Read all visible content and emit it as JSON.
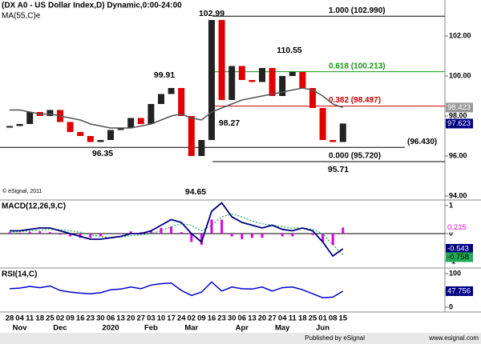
{
  "chart_data": [
    {
      "type": "candlestick",
      "title": "(DX A0 - US Dollar Index,D) Dynamic,0:00-24:00",
      "subtitle": "MA(55,C)e",
      "credit": "© eSignal, 2011",
      "categories": [
        "28",
        "04",
        "11",
        "18",
        "25",
        "02",
        "09",
        "16",
        "23",
        "30",
        "06",
        "13",
        "20",
        "27",
        "03",
        "10",
        "17",
        "24",
        "02",
        "09",
        "16",
        "23",
        "30",
        "06",
        "13",
        "20",
        "27",
        "04",
        "11",
        "18",
        "25",
        "01",
        "08",
        "15"
      ],
      "x_groups": [
        "Nov",
        "Dec",
        "2020",
        "Feb",
        "Mar",
        "Apr",
        "May",
        "Jun"
      ],
      "up_color": "#222222",
      "down_color": "#e00000",
      "values": [
        97.5,
        97.6,
        98.2,
        98.0,
        98.3,
        97.7,
        97.2,
        97.0,
        96.7,
        96.8,
        97.3,
        97.4,
        97.9,
        97.6,
        98.6,
        99.1,
        99.4,
        98.0,
        96.0,
        96.8,
        102.8,
        98.8,
        100.5,
        99.8,
        99.7,
        100.4,
        99.0,
        100.0,
        100.2,
        99.4,
        98.4,
        96.8,
        96.7,
        97.623
      ],
      "ma_color": "#555555",
      "ma_values": [
        98.3,
        98.3,
        98.2,
        98.1,
        98.1,
        98.0,
        97.9,
        97.8,
        97.6,
        97.5,
        97.4,
        97.4,
        97.4,
        97.5,
        97.6,
        97.8,
        98.0,
        98.1,
        97.9,
        97.8,
        98.2,
        98.4,
        98.6,
        98.8,
        98.9,
        99.0,
        99.1,
        99.2,
        99.3,
        99.4,
        99.3,
        99.0,
        98.6,
        98.423
      ],
      "ylim": [
        93.8,
        103.8
      ],
      "yticks": [
        {
          "value": 94,
          "label": "94.00"
        },
        {
          "value": 96,
          "label": "96.00"
        },
        {
          "value": 98,
          "label": "98.00"
        },
        {
          "value": 100,
          "label": "100.00"
        },
        {
          "value": 102,
          "label": "102.00"
        }
      ],
      "annotations": [
        102.99,
        99.91,
        110.55,
        98.27,
        96.35,
        94.65,
        95.71
      ],
      "levels": [
        {
          "value": 102.99,
          "label": "1.000 (102.990)",
          "color": "#000000"
        },
        {
          "value": 100.213,
          "label": "0.618 (100.213)",
          "color": "#119911"
        },
        {
          "value": 98.497,
          "label": "0.382 (98.497)",
          "color": "#cc0000"
        },
        {
          "value": 95.72,
          "label": "0.000 (95.720)",
          "color": "#000000"
        },
        {
          "value": 96.43,
          "label": "(96.430)",
          "color": "#000000"
        }
      ]
    },
    {
      "type": "line",
      "title": "MACD(12,26,9,C)",
      "ylim": [
        -1.23,
        1.2
      ],
      "yticks": [
        -1,
        0,
        1
      ],
      "macd_color": "#000080",
      "signal_color": "#22aa55",
      "hist_color": "#e000e0",
      "macd": [
        0.1,
        0.1,
        0.15,
        0.2,
        0.2,
        0.1,
        0,
        -0.1,
        -0.2,
        -0.2,
        -0.15,
        -0.1,
        0,
        0,
        0.1,
        0.3,
        0.5,
        0.4,
        0,
        -0.3,
        0.8,
        1.1,
        0.6,
        0.4,
        0.3,
        0.2,
        0.3,
        0.15,
        0.1,
        0.2,
        0.1,
        -0.3,
        -0.8,
        -0.543
      ],
      "signal": [
        0.05,
        0.07,
        0.09,
        0.12,
        0.15,
        0.14,
        0.1,
        0.05,
        -0.05,
        -0.1,
        -0.15,
        -0.12,
        -0.08,
        -0.05,
        0,
        0.1,
        0.25,
        0.35,
        0.3,
        0.1,
        0.3,
        0.6,
        0.7,
        0.6,
        0.45,
        0.35,
        0.3,
        0.25,
        0.2,
        0.2,
        0.15,
        0,
        -0.4,
        -0.758
      ],
      "hist": [
        0.05,
        0.03,
        0.06,
        0.08,
        0.05,
        -0.04,
        -0.1,
        -0.15,
        -0.15,
        -0.1,
        0,
        0.02,
        0.08,
        0.05,
        0.1,
        0.2,
        0.25,
        0.05,
        -0.3,
        -0.4,
        0.5,
        0.5,
        -0.1,
        -0.2,
        -0.15,
        -0.15,
        0,
        -0.1,
        -0.1,
        0,
        -0.05,
        -0.3,
        -0.4,
        0.215
      ]
    },
    {
      "type": "line",
      "title": "RSI(14,C)",
      "ylim": [
        -14.3,
        116.7
      ],
      "yticks": [
        0,
        50,
        100
      ],
      "color": "#0000cc",
      "values": [
        55,
        57,
        62,
        58,
        63,
        50,
        45,
        42,
        40,
        43,
        52,
        54,
        60,
        55,
        66,
        70,
        72,
        50,
        35,
        45,
        75,
        48,
        60,
        55,
        54,
        60,
        48,
        58,
        60,
        52,
        40,
        28,
        30,
        47.756
      ]
    }
  ],
  "footer": {
    "left": "Published by eSignal",
    "right": "www.esignal.com"
  }
}
